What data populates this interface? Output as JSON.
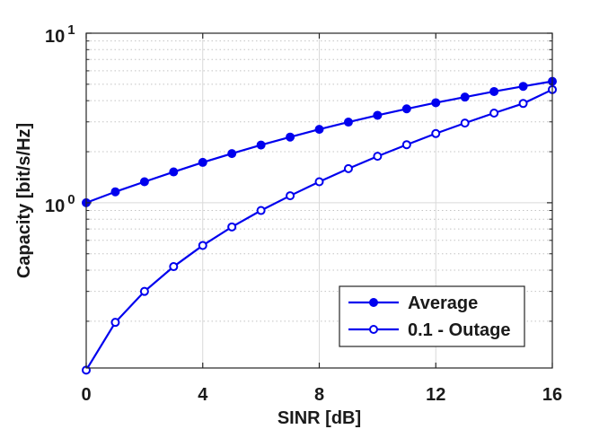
{
  "chart_data": {
    "type": "line",
    "xlabel": "SINR [dB]",
    "ylabel": "Capacity [bit/s/Hz]",
    "xlim": [
      0,
      16
    ],
    "ylim": [
      0.1,
      10
    ],
    "yscale": "log",
    "grid": true,
    "x_ticks": [
      "0",
      "4",
      "8",
      "12",
      "16"
    ],
    "y_ticks": [
      {
        "base": "10",
        "exp": "0",
        "value": 1
      },
      {
        "base": "10",
        "exp": "1",
        "value": 10
      }
    ],
    "legend_position": "bottom-right",
    "x": [
      0,
      1,
      2,
      3,
      4,
      5,
      6,
      7,
      8,
      9,
      10,
      11,
      12,
      13,
      14,
      15,
      16
    ],
    "series": [
      {
        "name": "Average",
        "marker": "filled-circle",
        "color": "#0000ee",
        "values": [
          1.0,
          1.16,
          1.33,
          1.52,
          1.73,
          1.95,
          2.19,
          2.44,
          2.71,
          2.99,
          3.28,
          3.58,
          3.89,
          4.2,
          4.53,
          4.86,
          5.2
        ]
      },
      {
        "name": "0.1 - Outage",
        "marker": "open-circle",
        "color": "#0000ee",
        "values": [
          0.103,
          0.197,
          0.3,
          0.42,
          0.56,
          0.72,
          0.9,
          1.1,
          1.33,
          1.59,
          1.88,
          2.2,
          2.56,
          2.95,
          3.38,
          3.85,
          4.65
        ]
      }
    ]
  }
}
